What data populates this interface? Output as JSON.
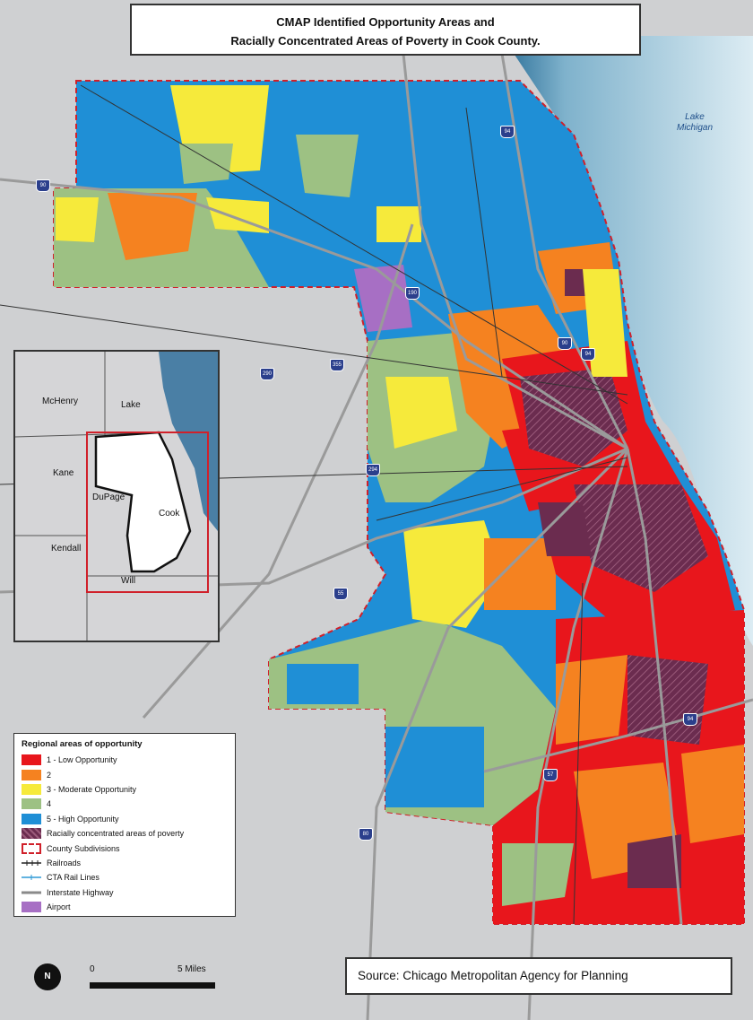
{
  "title": {
    "line1": "CMAP Identified Opportunity Areas and",
    "line2": "Racially Concentrated Areas of Poverty in Cook County."
  },
  "lake_label": {
    "line1": "Lake",
    "line2": "Michigan"
  },
  "inset": {
    "counties": [
      "McHenry",
      "Lake",
      "Kane",
      "DuPage",
      "Cook",
      "Kendall",
      "Will"
    ]
  },
  "legend": {
    "title": "Regional areas of opportunity",
    "items": [
      {
        "label": "1 - Low Opportunity",
        "color": "#e8161c"
      },
      {
        "label": "2",
        "color": "#f58220"
      },
      {
        "label": "3 - Moderate Opportunity",
        "color": "#f6ea3b"
      },
      {
        "label": "4",
        "color": "#9dc183"
      },
      {
        "label": "5 - High Opportunity",
        "color": "#1f8fd6"
      },
      {
        "label": "Racially concentrated areas of poverty",
        "color": "#6b2c4f"
      },
      {
        "label": "County Subdivisions",
        "color": "#d0202a"
      },
      {
        "label": "Railroads",
        "color": "#222222"
      },
      {
        "label": "CTA Rail Lines",
        "color": "#2e9ad6"
      },
      {
        "label": "Interstate Highway",
        "color": "#8a8a8a"
      },
      {
        "label": "Airport",
        "color": "#a76fc4"
      }
    ]
  },
  "scale": {
    "start": "0",
    "end": "5 Miles"
  },
  "north_arrow": "N",
  "source": "Source: Chicago Metropolitan Agency for Planning",
  "highway_shields": [
    "90",
    "94",
    "190",
    "290",
    "294",
    "355",
    "55",
    "57",
    "80",
    "94",
    "90",
    "94"
  ]
}
